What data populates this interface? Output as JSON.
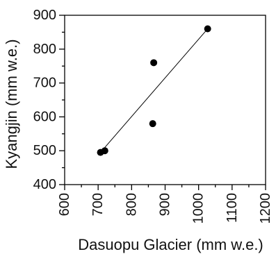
{
  "chart_data": {
    "type": "scatter",
    "title": "",
    "xlabel": "Dasuopu Glacier (mm w.e.)",
    "ylabel": "Kyangjin (mm w.e.)",
    "xlim": [
      600,
      1200
    ],
    "ylim": [
      400,
      900
    ],
    "x_ticks": [
      "600",
      "700",
      "800",
      "900",
      "1000",
      "1100",
      "1200"
    ],
    "y_ticks": [
      "400",
      "500",
      "600",
      "700",
      "800",
      "900"
    ],
    "x_tick_values": [
      600,
      700,
      800,
      900,
      1000,
      1100,
      1200
    ],
    "y_tick_values": [
      400,
      500,
      600,
      700,
      800,
      900
    ],
    "grid": false,
    "series": [
      {
        "points": [
          {
            "x": 707,
            "y": 495
          },
          {
            "x": 720,
            "y": 500
          },
          {
            "x": 863,
            "y": 580
          },
          {
            "x": 866,
            "y": 760
          },
          {
            "x": 1027,
            "y": 860
          }
        ]
      }
    ],
    "fit_line": {
      "x1": 707,
      "y1": 495,
      "x2": 1027,
      "y2": 860
    },
    "colors": {
      "marker": "#000000",
      "line": "#000000"
    }
  }
}
